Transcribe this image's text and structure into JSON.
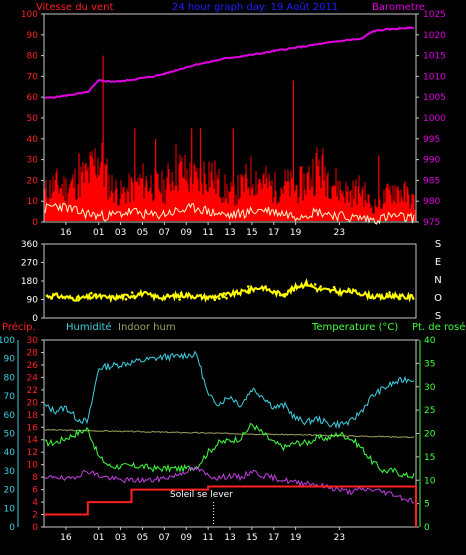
{
  "colors": {
    "background": "#000000",
    "frame": "#c8c8c8",
    "wind_speed": "#ff0000",
    "wind_avg": "#fff8c8",
    "barometer": "#e000e0",
    "wind_direction": "#ffff00",
    "precip": "#ff2020",
    "humidity": "#40d0e0",
    "indoor_hum": "#a0a060",
    "temperature": "#40ff40",
    "dew_point": "#c040e0",
    "title": "#2020ff"
  },
  "chart_data": [
    {
      "type": "line",
      "panel": "wind-barometer",
      "title": "24 hour graph day: 19 Août 2011",
      "left_axis_label": "Vitesse du vent",
      "right_axis_label": "Barometre",
      "left_ticks": [
        "0",
        "10",
        "20",
        "30",
        "40",
        "50",
        "60",
        "70",
        "80",
        "90",
        "100"
      ],
      "right_ticks": [
        "975",
        "980",
        "985",
        "990",
        "995",
        "1000",
        "1005",
        "1010",
        "1015",
        "1020",
        "1025"
      ],
      "ylim_left": [
        0,
        100
      ],
      "ylim_right": [
        975,
        1025
      ],
      "x_ticks": [
        "16",
        "01",
        "03",
        "05",
        "07",
        "09",
        "11",
        "13",
        "15",
        "17",
        "19",
        "23"
      ],
      "series": [
        {
          "name": "Barometre",
          "axis": "right",
          "x": [
            14,
            15,
            16,
            17,
            18,
            19,
            20,
            21,
            22,
            23,
            24,
            25,
            26,
            27,
            28,
            29,
            30,
            31,
            32,
            33,
            34,
            35,
            36,
            37,
            38,
            39,
            40,
            41,
            42,
            43,
            44,
            45,
            46,
            47,
            48
          ],
          "values": [
            1004.8,
            1005.0,
            1005.4,
            1005.8,
            1006.2,
            1009.0,
            1008.8,
            1008.8,
            1009.2,
            1009.6,
            1010.0,
            1010.6,
            1011.4,
            1012.2,
            1012.9,
            1013.4,
            1014.0,
            1014.5,
            1014.8,
            1015.2,
            1015.6,
            1016.1,
            1016.5,
            1016.9,
            1017.3,
            1017.7,
            1018.1,
            1018.5,
            1018.8,
            1019.0,
            1020.8,
            1021.2,
            1021.4,
            1021.6,
            1021.7
          ]
        },
        {
          "name": "Vitesse du vent (rafales)",
          "axis": "left",
          "x": [
            14,
            15,
            16,
            17,
            18,
            19,
            20,
            21,
            22,
            23,
            24,
            25,
            26,
            27,
            28,
            29,
            30,
            31,
            32,
            33,
            34,
            35,
            36,
            37,
            38,
            39,
            40,
            41,
            42,
            43,
            44,
            45,
            46,
            47,
            48
          ],
          "values": [
            15,
            20,
            18,
            22,
            25,
            35,
            20,
            15,
            18,
            22,
            20,
            18,
            30,
            25,
            22,
            28,
            20,
            15,
            18,
            25,
            22,
            18,
            20,
            18,
            22,
            30,
            25,
            18,
            15,
            18,
            8,
            12,
            18,
            15,
            10
          ]
        },
        {
          "name": "Vitesse du vent (moyenne)",
          "axis": "left",
          "x": [
            14,
            15,
            16,
            17,
            18,
            19,
            20,
            21,
            22,
            23,
            24,
            25,
            26,
            27,
            28,
            29,
            30,
            31,
            32,
            33,
            34,
            35,
            36,
            37,
            38,
            39,
            40,
            41,
            42,
            43,
            44,
            45,
            46,
            47,
            48
          ],
          "values": [
            6,
            8,
            7,
            5,
            4,
            3,
            3,
            4,
            5,
            4,
            3,
            4,
            5,
            6,
            7,
            5,
            4,
            3,
            4,
            5,
            6,
            5,
            4,
            3,
            4,
            5,
            4,
            3,
            2,
            2,
            1,
            2,
            3,
            2,
            2
          ]
        }
      ],
      "spikes": {
        "x": [
          17.2,
          19.4,
          22.3,
          24.2,
          27.5,
          28.3,
          31.3,
          36.8,
          44.6
        ],
        "values": [
          33,
          80,
          45,
          40,
          45,
          45,
          45,
          68,
          32
        ]
      }
    },
    {
      "type": "scatter",
      "panel": "wind-direction",
      "left_ticks": [
        "0",
        "90",
        "180",
        "270",
        "360"
      ],
      "ylim": [
        0,
        360
      ],
      "right_label_letters": [
        "S",
        "E",
        "N",
        "O",
        "S"
      ],
      "series": [
        {
          "name": "Direction du vent",
          "x": [
            14,
            15,
            16,
            17,
            18,
            19,
            20,
            21,
            22,
            23,
            24,
            25,
            26,
            27,
            28,
            29,
            30,
            31,
            32,
            33,
            34,
            35,
            36,
            37,
            38,
            39,
            40,
            41,
            42,
            43,
            44,
            45,
            46,
            47,
            48
          ],
          "values": [
            105,
            110,
            100,
            95,
            100,
            105,
            98,
            102,
            110,
            120,
            105,
            100,
            108,
            112,
            105,
            100,
            108,
            115,
            125,
            140,
            150,
            125,
            115,
            150,
            170,
            140,
            135,
            125,
            130,
            120,
            105,
            100,
            110,
            100,
            105
          ]
        }
      ]
    },
    {
      "type": "line",
      "panel": "humidity-temperature",
      "precip_label": "Précip.",
      "humidity_label": "Humidité",
      "indoor_label": "Indoor hum",
      "temperature_label": "Temperature (°C)",
      "dew_label": "Pt. de rosée",
      "annotation": "Soleil se lever",
      "hum_ticks": [
        "0",
        "10",
        "20",
        "30",
        "40",
        "50",
        "60",
        "70",
        "80",
        "90",
        "100"
      ],
      "precip_ticks": [
        "0",
        "2",
        "4",
        "6",
        "8",
        "10",
        "12",
        "14",
        "16",
        "18",
        "20",
        "22",
        "24",
        "26",
        "28",
        "30"
      ],
      "temp_ticks": [
        "0",
        "5",
        "10",
        "15",
        "20",
        "25",
        "30",
        "35",
        "40"
      ],
      "ylim_humidity": [
        0,
        100
      ],
      "ylim_precip": [
        0,
        30
      ],
      "ylim_temperature": [
        0,
        40
      ],
      "x_ticks": [
        "16",
        "01",
        "03",
        "05",
        "07",
        "09",
        "11",
        "13",
        "15",
        "17",
        "19",
        "23"
      ],
      "series": [
        {
          "name": "Humidité",
          "axis": "humidity",
          "x": [
            14,
            15,
            16,
            17,
            18,
            19,
            20,
            21,
            22,
            23,
            24,
            25,
            26,
            27,
            28,
            29,
            30,
            31,
            32,
            33,
            34,
            35,
            36,
            37,
            38,
            39,
            40,
            41,
            42,
            43,
            44,
            45,
            46,
            47,
            48
          ],
          "values": [
            65,
            62,
            64,
            58,
            56,
            85,
            86,
            87,
            88,
            89,
            90,
            91,
            91,
            92,
            92,
            70,
            66,
            70,
            65,
            74,
            70,
            64,
            65,
            58,
            56,
            58,
            55,
            55,
            56,
            62,
            70,
            74,
            77,
            79,
            79
          ]
        },
        {
          "name": "Indoor hum",
          "axis": "humidity",
          "x": [
            14,
            48
          ],
          "values": [
            52,
            48
          ]
        },
        {
          "name": "Temperature",
          "axis": "temperature",
          "x": [
            14,
            15,
            16,
            17,
            18,
            19,
            20,
            21,
            22,
            23,
            24,
            25,
            26,
            27,
            28,
            29,
            30,
            31,
            32,
            33,
            34,
            35,
            36,
            37,
            38,
            39,
            40,
            41,
            42,
            43,
            44,
            45,
            46,
            47,
            48
          ],
          "values": [
            18,
            18,
            19,
            20,
            21,
            15,
            13,
            13,
            13,
            13,
            12.5,
            12.5,
            12.5,
            12.5,
            13,
            16,
            18,
            18.5,
            19,
            22,
            20,
            18,
            17,
            18,
            18,
            19,
            19,
            20,
            19,
            17,
            14,
            12,
            12,
            11,
            11
          ]
        },
        {
          "name": "Pt. de rosée",
          "axis": "temperature",
          "x": [
            14,
            15,
            16,
            17,
            18,
            19,
            20,
            21,
            22,
            23,
            24,
            25,
            26,
            27,
            28,
            29,
            30,
            31,
            32,
            33,
            34,
            35,
            36,
            37,
            38,
            39,
            40,
            41,
            42,
            43,
            44,
            45,
            46,
            47,
            48
          ],
          "values": [
            10,
            11,
            10,
            11,
            12,
            11,
            10.5,
            10,
            10,
            10,
            10,
            10.5,
            11,
            12,
            12.5,
            11,
            10.5,
            11,
            10.5,
            12,
            11,
            10.5,
            10,
            9.5,
            9.5,
            9,
            8.5,
            8,
            7.5,
            8,
            8,
            7.5,
            7,
            6,
            5.5
          ]
        },
        {
          "name": "Précip.",
          "axis": "precip",
          "step": true,
          "x": [
            14,
            17.5,
            18,
            21.5,
            22,
            28.5,
            29,
            47.5,
            48
          ],
          "values": [
            2,
            2,
            4,
            4,
            6,
            6,
            6.5,
            6.5,
            0
          ]
        }
      ]
    }
  ]
}
